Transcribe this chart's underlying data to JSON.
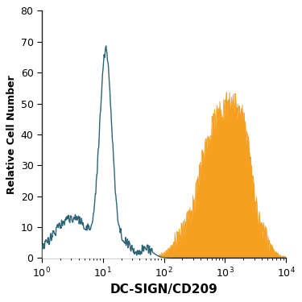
{
  "title": "",
  "xlabel": "DC-SIGN/CD209",
  "ylabel": "Relative Cell Number",
  "xlim_log": [
    0,
    4
  ],
  "ylim": [
    0,
    80
  ],
  "yticks": [
    0,
    10,
    20,
    30,
    40,
    50,
    60,
    70,
    80
  ],
  "bg_color": "#ffffff",
  "blue_color": "#2d6475",
  "orange_color": "#f5a020",
  "xlabel_fontsize": 11,
  "ylabel_fontsize": 9,
  "tick_fontsize": 9
}
